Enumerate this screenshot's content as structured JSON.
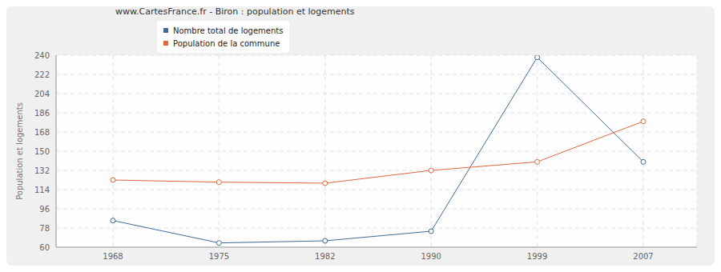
{
  "chart_data": {
    "type": "line",
    "title": "www.CartesFrance.fr - Biron : population et logements",
    "y_label": "Population et logements",
    "categories": [
      "1968",
      "1975",
      "1982",
      "1990",
      "1999",
      "2007"
    ],
    "series": [
      {
        "name": "Nombre total de logements",
        "color": "#3e6b9a",
        "values": [
          85,
          64,
          66,
          75,
          238,
          140
        ],
        "marker": "circle"
      },
      {
        "name": "Population de la commune",
        "color": "#e0683c",
        "values": [
          123,
          121,
          120,
          132,
          140,
          178
        ],
        "marker": "circle"
      }
    ],
    "ylim": [
      60,
      240
    ],
    "yticks": [
      60,
      78,
      96,
      114,
      132,
      150,
      168,
      186,
      204,
      222,
      240
    ],
    "grid": true,
    "legend": "top"
  }
}
